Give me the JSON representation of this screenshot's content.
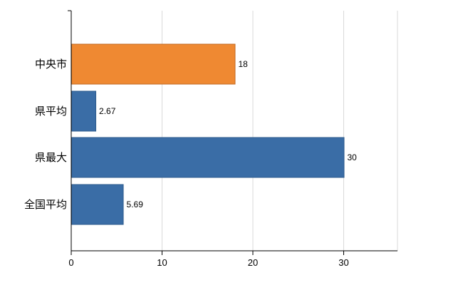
{
  "chart_data": {
    "type": "bar",
    "orientation": "horizontal",
    "title": "",
    "xlabel": "",
    "ylabel": "",
    "categories": [
      "中央市",
      "県平均",
      "県最大",
      "全国平均"
    ],
    "values": [
      18,
      2.67,
      30,
      5.69
    ],
    "data_labels": [
      "18",
      "2.67",
      "30",
      "5.69"
    ],
    "bar_colors": [
      "#EF8932",
      "#3A6DA6",
      "#3A6DA6",
      "#3A6DA6"
    ],
    "bar_border_colors": [
      "#C06A24",
      "#2E5B8C",
      "#2E5B8C",
      "#2E5B8C"
    ],
    "x_ticks": [
      "0",
      "10",
      "20",
      "30"
    ],
    "x_tick_values": [
      0,
      10,
      20,
      30
    ],
    "xlim": [
      0,
      35.9
    ],
    "grid": "vertical-only",
    "grid_color": "#d9d9d9",
    "axis_color": "#000000",
    "label_color": "#000000",
    "legend": "none",
    "background_color": "#ffffff"
  }
}
